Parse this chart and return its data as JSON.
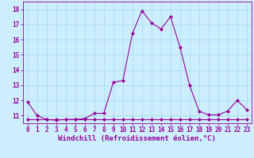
{
  "xlabel": "Windchill (Refroidissement éolien,°C)",
  "line1_x": [
    0,
    1,
    2,
    3,
    4,
    5,
    6,
    7,
    8,
    9,
    10,
    11,
    12,
    13,
    14,
    15,
    16,
    17,
    18,
    19,
    20,
    21,
    22,
    23
  ],
  "line1_y": [
    11.9,
    11.0,
    10.75,
    10.7,
    10.75,
    10.75,
    10.8,
    11.15,
    11.15,
    13.2,
    13.3,
    16.4,
    17.9,
    17.1,
    16.7,
    17.5,
    15.5,
    13.0,
    11.3,
    11.05,
    11.05,
    11.3,
    12.0,
    11.4
  ],
  "line2_x": [
    0,
    1,
    2,
    3,
    4,
    5,
    6,
    7,
    8,
    9,
    10,
    11,
    12,
    13,
    14,
    15,
    16,
    17,
    18,
    19,
    20,
    21,
    22,
    23
  ],
  "line2_y": [
    10.75,
    10.75,
    10.75,
    10.75,
    10.75,
    10.75,
    10.75,
    10.75,
    10.75,
    10.75,
    10.75,
    10.75,
    10.75,
    10.75,
    10.75,
    10.75,
    10.75,
    10.75,
    10.75,
    10.75,
    10.75,
    10.75,
    10.75,
    10.75
  ],
  "line_color": "#990099",
  "bg_color": "#cceeff",
  "grid_color": "#aaddee",
  "ylim": [
    10.5,
    18.5
  ],
  "xlim": [
    -0.5,
    23.5
  ],
  "yticks": [
    11,
    12,
    13,
    14,
    15,
    16,
    17,
    18
  ],
  "xticks": [
    0,
    1,
    2,
    3,
    4,
    5,
    6,
    7,
    8,
    9,
    10,
    11,
    12,
    13,
    14,
    15,
    16,
    17,
    18,
    19,
    20,
    21,
    22,
    23
  ],
  "marker": "D",
  "markersize": 2.0,
  "linewidth": 0.8,
  "tick_fontsize": 5.5,
  "xlabel_fontsize": 6.5
}
